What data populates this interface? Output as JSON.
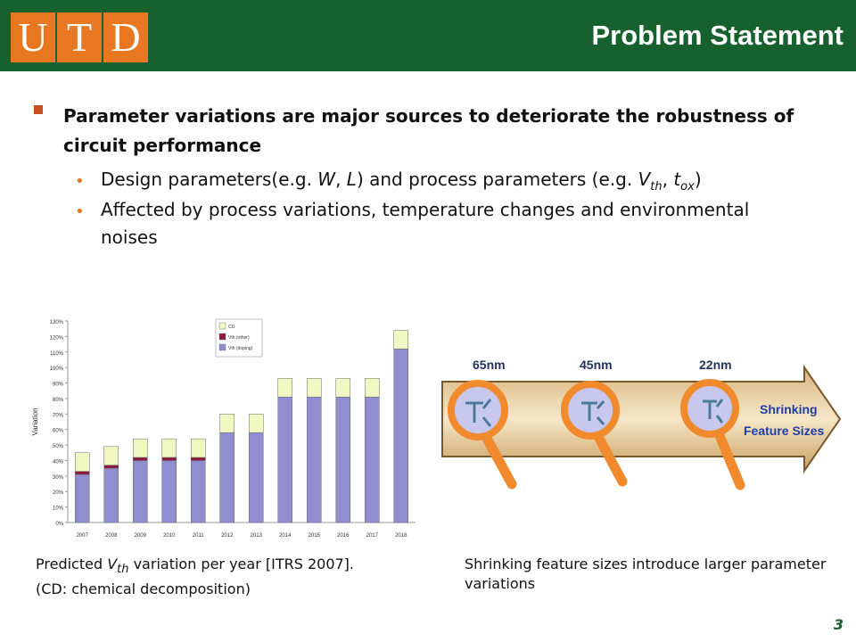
{
  "logo": {
    "letters": [
      "U",
      "T",
      "D"
    ]
  },
  "title": "Problem Statement",
  "bullet": {
    "text": "Parameter variations are major sources to deteriorate the robustness of circuit performance",
    "subs": [
      {
        "html": "Design parameters(e.g. <i>W</i>, <i>L</i>) and process parameters (e.g. <i>V<sub>th</sub></i>, <i>t<sub>ox</sub></i>)"
      },
      {
        "text": "Affected by process variations, temperature changes and environmental noises"
      }
    ]
  },
  "chart_data": {
    "type": "bar",
    "stacked": true,
    "categories": [
      "2007",
      "2008",
      "2009",
      "2010",
      "2011",
      "2012",
      "2013",
      "2014",
      "2015",
      "2016",
      "2017",
      "2018"
    ],
    "series": [
      {
        "name": "Vth (doping)",
        "color": "#8e8ed0",
        "values": [
          31,
          35,
          40,
          40,
          40,
          58,
          58,
          81,
          81,
          81,
          81,
          112
        ]
      },
      {
        "name": "Vth (other)",
        "color": "#8b1a3c",
        "values": [
          2,
          2,
          2,
          2,
          2,
          0,
          0,
          0,
          0,
          0,
          0,
          0
        ]
      },
      {
        "name": "CD",
        "color": "#f0f7c0",
        "values": [
          12,
          12,
          12,
          12,
          12,
          12,
          12,
          12,
          12,
          12,
          12,
          12
        ]
      }
    ],
    "ylabel": "Variation",
    "ylim": [
      0,
      130
    ],
    "yticks": [
      "0%",
      "10%",
      "20%",
      "30%",
      "40%",
      "50%",
      "60%",
      "70%",
      "80%",
      "90%",
      "100%",
      "110%",
      "120%",
      "130%"
    ],
    "legend": "top-right",
    "grid": false
  },
  "feature_figure": {
    "nodes": [
      "65nm",
      "45nm",
      "22nm"
    ],
    "label_lines": [
      "Shrinking",
      "Feature Sizes"
    ]
  },
  "captions": {
    "left_html": "Predicted <i>V<sub>th</sub></i> variation per year [ITRS 2007].<br>(CD: chemical decomposition)",
    "right": "Shrinking feature sizes introduce larger parameter variations"
  },
  "page_number": "3",
  "colors": {
    "header": "#17612f",
    "logo": "#e87722",
    "bullet_square": "#c8501e",
    "magnifier": "#f08a2c"
  }
}
